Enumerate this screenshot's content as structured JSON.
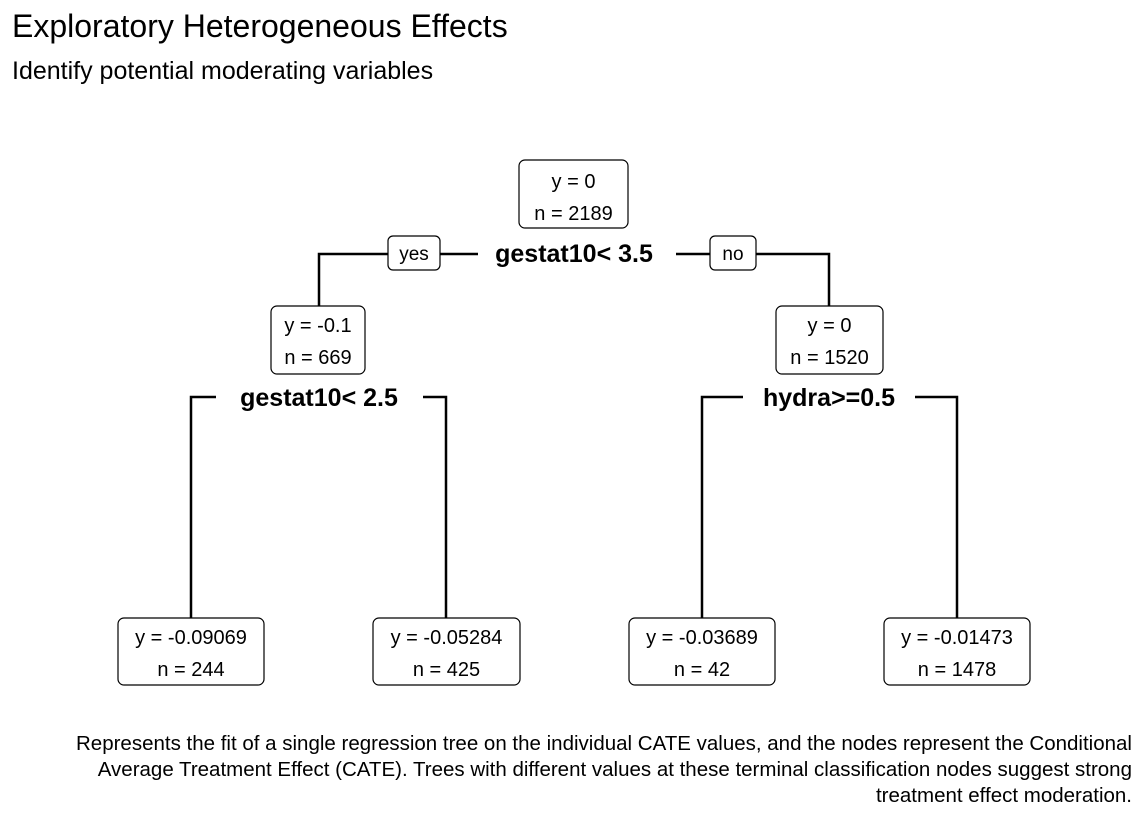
{
  "header": {
    "title": "Exploratory Heterogeneous Effects",
    "subtitle": "Identify potential moderating variables"
  },
  "tree": {
    "nodes": [
      {
        "id": "root",
        "y_label": "y = 0",
        "n_label": "n = 2189",
        "split": "gestat10< 3.5"
      },
      {
        "id": "left",
        "y_label": "y = -0.1",
        "n_label": "n = 669",
        "split": "gestat10< 2.5"
      },
      {
        "id": "right",
        "y_label": "y = 0",
        "n_label": "n = 1520",
        "split": "hydra>=0.5"
      },
      {
        "id": "leaf1",
        "y_label": "y = -0.09069",
        "n_label": "n = 244"
      },
      {
        "id": "leaf2",
        "y_label": "y = -0.05284",
        "n_label": "n = 425"
      },
      {
        "id": "leaf3",
        "y_label": "y = -0.03689",
        "n_label": "n = 42"
      },
      {
        "id": "leaf4",
        "y_label": "y = -0.01473",
        "n_label": "n = 1478"
      }
    ],
    "branch_labels": {
      "yes": "yes",
      "no": "no"
    }
  },
  "footer": {
    "caption": "Represents the fit of a single regression tree on the individual CATE values, and the nodes represent the Conditional Average Treatment Effect (CATE). Trees with different values at these terminal classification nodes suggest strong treatment effect moderation."
  }
}
